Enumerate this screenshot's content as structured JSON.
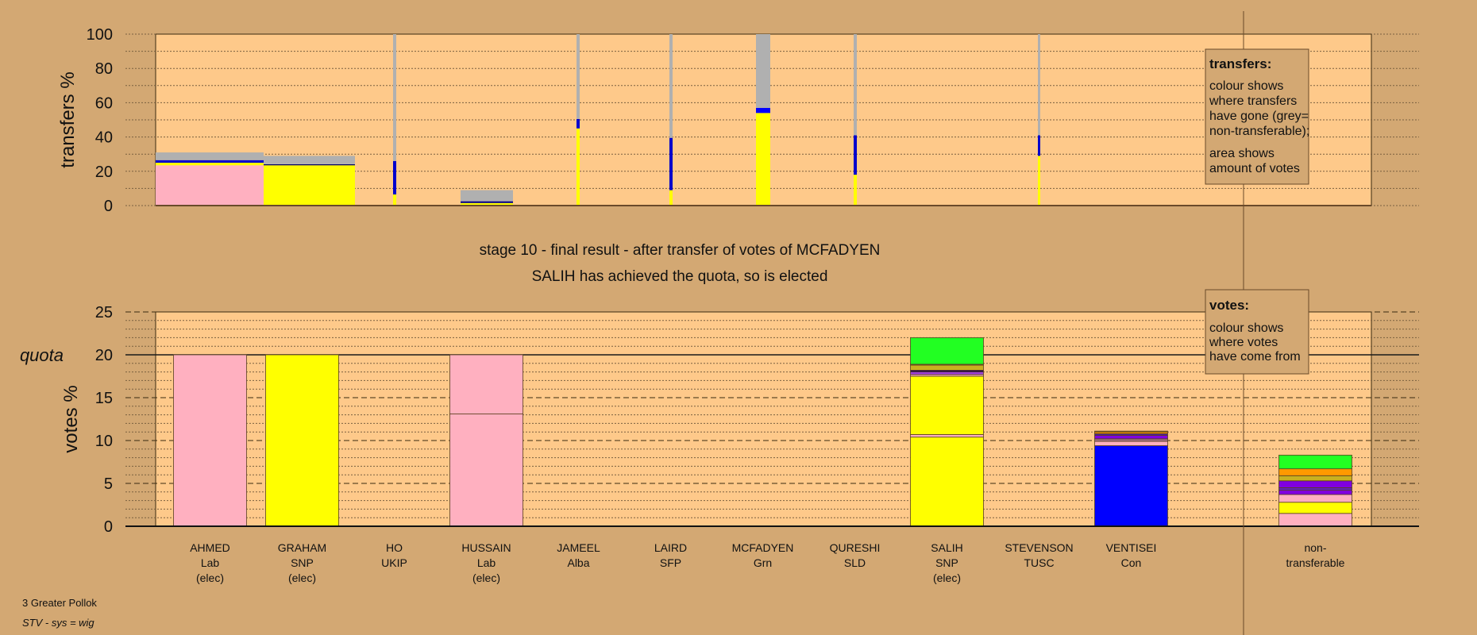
{
  "chart_data": [
    {
      "type": "bar",
      "subtype": "stacked-variable-width",
      "ylabel": "transfers %",
      "ylim": [
        0,
        100
      ],
      "yticks": [
        "0",
        "20",
        "40",
        "60",
        "80",
        "100"
      ],
      "grid": true,
      "legend": {
        "title": "transfers:",
        "lines1": [
          "colour shows",
          "where transfers",
          "have gone (grey=",
          "non-transferable);"
        ],
        "lines2": [
          "area shows",
          "amount of votes"
        ],
        "placement": "top-right"
      },
      "columns": [
        {
          "candidate": "AHMED",
          "amount": 136,
          "segments": [
            {
              "color": "#ffb0c0",
              "value": 23.5
            },
            {
              "color": "#ffff00",
              "value": 1.5
            },
            {
              "color": "#0000cc",
              "value": 1.5
            },
            {
              "color": "#b0b0b0",
              "value": 4.5
            }
          ]
        },
        {
          "candidate": "GRAHAM",
          "amount": 115,
          "segments": [
            {
              "color": "#ffff00",
              "value": 23.5
            },
            {
              "color": "#000066",
              "value": 0.6
            },
            {
              "color": "#b0b0b0",
              "value": 4.9
            }
          ]
        },
        {
          "candidate": "HO",
          "amount": 4,
          "segments": [
            {
              "color": "#ffff00",
              "value": 6.5
            },
            {
              "color": "#0000cc",
              "value": 19.5
            },
            {
              "color": "#b0b0b0",
              "value": 74
            }
          ]
        },
        {
          "candidate": "HUSSAIN",
          "amount": 66,
          "segments": [
            {
              "color": "#ffff00",
              "value": 1.5
            },
            {
              "color": "#000088",
              "value": 1
            },
            {
              "color": "#b0b0b0",
              "value": 6.5
            }
          ]
        },
        {
          "candidate": "JAMEEL",
          "amount": 4,
          "segments": [
            {
              "color": "#ffff00",
              "value": 45
            },
            {
              "color": "#0000cc",
              "value": 5.5
            },
            {
              "color": "#b0b0b0",
              "value": 49.5
            }
          ]
        },
        {
          "candidate": "LAIRD",
          "amount": 4,
          "segments": [
            {
              "color": "#ffff00",
              "value": 9
            },
            {
              "color": "#0000cc",
              "value": 30.5
            },
            {
              "color": "#b0b0b0",
              "value": 60.5
            }
          ]
        },
        {
          "candidate": "MCFADYEN",
          "amount": 18,
          "segments": [
            {
              "color": "#ffff00",
              "value": 54
            },
            {
              "color": "#0000ff",
              "value": 3
            },
            {
              "color": "#b0b0b0",
              "value": 43
            }
          ]
        },
        {
          "candidate": "QURESHI",
          "amount": 4,
          "segments": [
            {
              "color": "#ffff00",
              "value": 18
            },
            {
              "color": "#0000cc",
              "value": 23
            },
            {
              "color": "#b0b0b0",
              "value": 59
            }
          ]
        },
        {
          "candidate": "STEVENSON",
          "amount": 3,
          "segments": [
            {
              "color": "#ffff00",
              "value": 29
            },
            {
              "color": "#0000cc",
              "value": 12
            },
            {
              "color": "#b0b0b0",
              "value": 59
            }
          ]
        }
      ]
    },
    {
      "type": "bar",
      "subtype": "stacked",
      "title": "stage 10 - final result - after transfer of votes of MCFADYEN",
      "subtitle": "SALIH has achieved the quota, so is elected",
      "ylabel": "votes %",
      "ylim": [
        0,
        25
      ],
      "yticks": [
        "0",
        "5",
        "10",
        "15",
        "20",
        "25"
      ],
      "quota": 20,
      "quota_label": "quota",
      "grid": true,
      "legend": {
        "title": "votes:",
        "lines": [
          "colour shows",
          "where votes",
          "have come from"
        ],
        "placement": "top-right"
      },
      "categories": [
        {
          "name": "AHMED",
          "party": "Lab",
          "status": "(elec)",
          "segments": [
            {
              "color": "#ffb0c0",
              "value": 20
            }
          ]
        },
        {
          "name": "GRAHAM",
          "party": "SNP",
          "status": "(elec)",
          "segments": [
            {
              "color": "#ffff00",
              "value": 20
            }
          ]
        },
        {
          "name": "HO",
          "party": "UKIP",
          "status": "",
          "segments": []
        },
        {
          "name": "HUSSAIN",
          "party": "Lab",
          "status": "(elec)",
          "segments": [
            {
              "color": "#ffb0c0",
              "value": 13.1
            },
            {
              "color": "#ffb0c0",
              "value": 6.9
            }
          ]
        },
        {
          "name": "JAMEEL",
          "party": "Alba",
          "status": "",
          "segments": []
        },
        {
          "name": "LAIRD",
          "party": "SFP",
          "status": "",
          "segments": []
        },
        {
          "name": "MCFADYEN",
          "party": "Grn",
          "status": "",
          "segments": []
        },
        {
          "name": "QURESHI",
          "party": "SLD",
          "status": "",
          "segments": []
        },
        {
          "name": "SALIH",
          "party": "SNP",
          "status": "(elec)",
          "segments": [
            {
              "color": "#ffff00",
              "value": 10.4
            },
            {
              "color": "#ffb0c0",
              "value": 0.3
            },
            {
              "color": "#ffff00",
              "value": 6.8
            },
            {
              "color": "#ffb0c0",
              "value": 0.2
            },
            {
              "color": "#a040e0",
              "value": 0.3
            },
            {
              "color": "#200060",
              "value": 0.2
            },
            {
              "color": "#c8b020",
              "value": 0.6
            },
            {
              "color": "#d08020",
              "value": 0.1
            },
            {
              "color": "#22ff22",
              "value": 3.1
            }
          ]
        },
        {
          "name": "STEVENSON",
          "party": "TUSC",
          "status": "",
          "segments": []
        },
        {
          "name": "VENTISEI",
          "party": "Con",
          "status": "",
          "segments": [
            {
              "color": "#0000ff",
              "value": 9.4
            },
            {
              "color": "#ffb0c0",
              "value": 0.5
            },
            {
              "color": "#a07080",
              "value": 0.3
            },
            {
              "color": "#8000e0",
              "value": 0.4
            },
            {
              "color": "#5020a0",
              "value": 0.2
            },
            {
              "color": "#ff9900",
              "value": 0.2
            },
            {
              "color": "#a08020",
              "value": 0.1
            }
          ]
        },
        {
          "name": "non-",
          "party": "transferable",
          "status": "",
          "slot_gap": true,
          "segments": [
            {
              "color": "#ffb0c0",
              "value": 1.5
            },
            {
              "color": "#ffff00",
              "value": 1.3
            },
            {
              "color": "#ffb0c0",
              "value": 0.9
            },
            {
              "color": "#8000e0",
              "value": 0.5
            },
            {
              "color": "#6020c0",
              "value": 0.3
            },
            {
              "color": "#8000e0",
              "value": 0.8
            },
            {
              "color": "#c8b020",
              "value": 0.6
            },
            {
              "color": "#ff9900",
              "value": 0.8
            },
            {
              "color": "#22ff22",
              "value": 1.6
            }
          ]
        }
      ]
    }
  ],
  "footer": {
    "line1": "3 Greater Pollok",
    "line2": "STV - sys = wig"
  },
  "colors": {
    "background": "#d3a873",
    "plot": "#fec98a"
  }
}
